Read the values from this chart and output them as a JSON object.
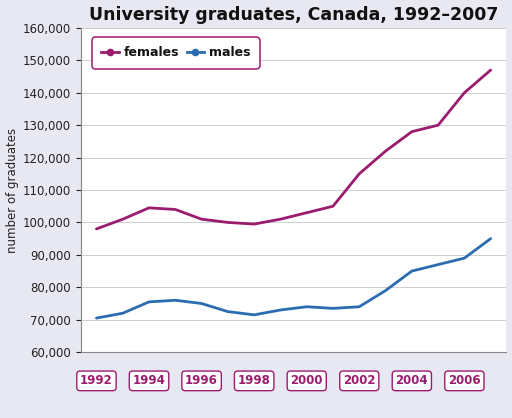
{
  "title": "University graduates, Canada, 1992–2007",
  "ylabel": "number of graduates",
  "years": [
    1992,
    1993,
    1994,
    1995,
    1996,
    1997,
    1998,
    1999,
    2000,
    2001,
    2002,
    2003,
    2004,
    2005,
    2006,
    2007
  ],
  "females": [
    98000,
    101000,
    104500,
    104000,
    101000,
    100000,
    99500,
    101000,
    103000,
    105000,
    115000,
    122000,
    128000,
    130000,
    140000,
    147000
  ],
  "males": [
    70500,
    72000,
    75500,
    76000,
    75000,
    72500,
    71500,
    73000,
    74000,
    73500,
    74000,
    79000,
    85000,
    87000,
    89000,
    95000
  ],
  "female_color": "#9B1B6E",
  "male_color": "#2B6CB0",
  "ylim": [
    60000,
    160000
  ],
  "yticks": [
    60000,
    70000,
    80000,
    90000,
    100000,
    110000,
    120000,
    130000,
    140000,
    150000,
    160000
  ],
  "xticks": [
    1992,
    1994,
    1996,
    1998,
    2000,
    2002,
    2004,
    2006
  ],
  "xlim": [
    1991.4,
    2007.6
  ],
  "outer_bg": "#E8E8F2",
  "plot_bg": "#FFFFFF",
  "title_fontsize": 12.5,
  "axis_label_fontsize": 8.5,
  "tick_fontsize": 8.5,
  "legend_label_females": "females",
  "legend_label_males": "males",
  "line_width": 2.0,
  "grid_color": "#C8C8C8",
  "spine_color": "#888888"
}
